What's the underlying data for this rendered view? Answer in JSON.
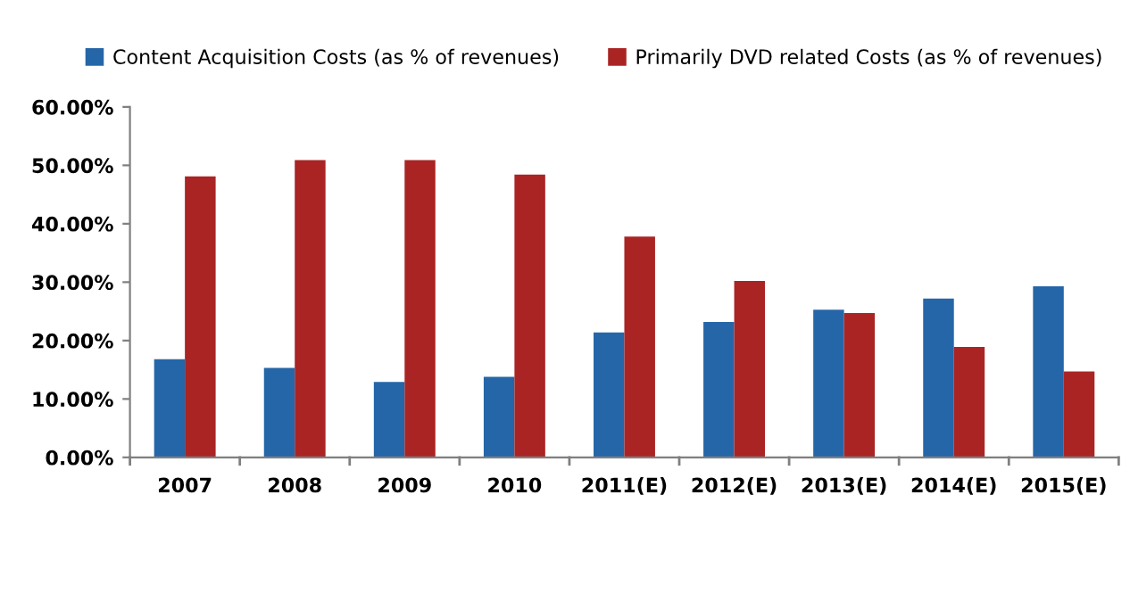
{
  "chart_data": {
    "type": "bar",
    "categories": [
      "2007",
      "2008",
      "2009",
      "2010",
      "2011(E)",
      "2012(E)",
      "2013(E)",
      "2014(E)",
      "2015(E)"
    ],
    "series": [
      {
        "name": "Content Acquisition Costs (as % of revenues)",
        "color": "#2566a8",
        "values": [
          16.8,
          15.3,
          12.9,
          13.8,
          21.4,
          23.2,
          25.3,
          27.2,
          29.3
        ]
      },
      {
        "name": "Primarily DVD related Costs (as % of revenues)",
        "color": "#aa2424",
        "values": [
          48.1,
          50.9,
          50.9,
          48.4,
          37.8,
          30.2,
          24.7,
          18.9,
          14.7
        ]
      }
    ],
    "ylim": [
      0,
      60
    ],
    "yticks": [
      {
        "value": 0,
        "label": "0.00%"
      },
      {
        "value": 10,
        "label": "10.00%"
      },
      {
        "value": 20,
        "label": "20.00%"
      },
      {
        "value": 30,
        "label": "30.00%"
      },
      {
        "value": 40,
        "label": "40.00%"
      },
      {
        "value": 50,
        "label": "50.00%"
      },
      {
        "value": 60,
        "label": "60.00%"
      }
    ],
    "grid": false,
    "legend": "top"
  }
}
